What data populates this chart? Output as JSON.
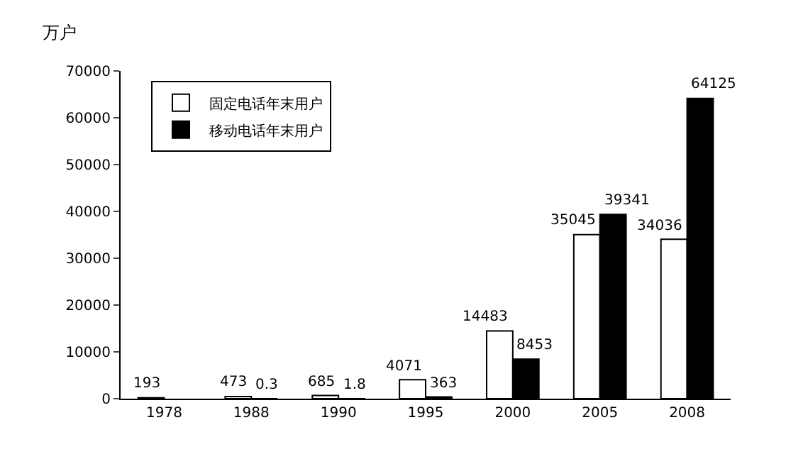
{
  "chart_data": {
    "type": "bar",
    "ylabel": "万户",
    "categories": [
      "1978",
      "1988",
      "1990",
      "1995",
      "2000",
      "2005",
      "2008"
    ],
    "series": [
      {
        "name": "固定电话年末用户",
        "color": "#ffffff",
        "values": [
          193,
          473,
          685,
          4071,
          14483,
          35045,
          34036
        ]
      },
      {
        "name": "移动电话年末用户",
        "color": "#000000",
        "values": [
          null,
          0.3,
          1.8,
          363,
          8453,
          39341,
          64125
        ]
      }
    ],
    "ylim": [
      0,
      70000
    ],
    "yticks": [
      0,
      10000,
      20000,
      30000,
      40000,
      50000,
      60000,
      70000
    ],
    "data_labels": true,
    "legend": "top left"
  }
}
